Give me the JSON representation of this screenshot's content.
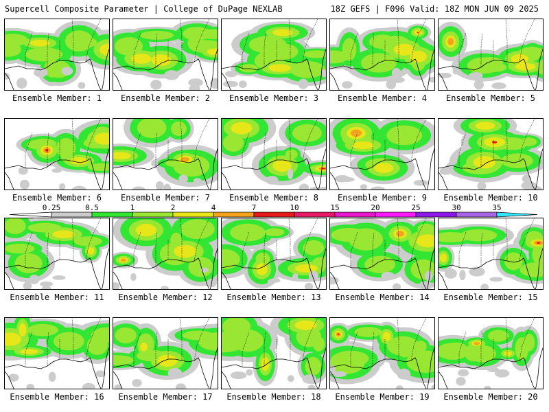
{
  "header": {
    "left_text": "Supercell Composite Parameter | College of DuPage NEXLAB",
    "right_text": "18Z GEFS | F096 Valid: 18Z MON JUN 09 2025"
  },
  "colorbar": {
    "levels": [
      {
        "label": "0.25",
        "color": "#cccccc"
      },
      {
        "label": "0.5",
        "color": "#33e633"
      },
      {
        "label": "1",
        "color": "#99e633"
      },
      {
        "label": "2",
        "color": "#e6e619"
      },
      {
        "label": "4",
        "color": "#f4a31e"
      },
      {
        "label": "7",
        "color": "#e61a1a"
      },
      {
        "label": "10",
        "color": "#e61a66"
      },
      {
        "label": "15",
        "color": "#e619cc"
      },
      {
        "label": "20",
        "color": "#ff19ff"
      },
      {
        "label": "25",
        "color": "#8c19e6"
      },
      {
        "label": "30",
        "color": "#a866e6"
      },
      {
        "label": "35",
        "color": "#33e6ff"
      }
    ],
    "end_color_low": "#ffffff"
  },
  "members": [
    {
      "label": "Ensemble Member: 1"
    },
    {
      "label": "Ensemble Member: 2"
    },
    {
      "label": "Ensemble Member: 3"
    },
    {
      "label": "Ensemble Member: 4"
    },
    {
      "label": "Ensemble Member: 5"
    },
    {
      "label": "Ensemble Member: 6"
    },
    {
      "label": "Ensemble Member: 7"
    },
    {
      "label": "Ensemble Member: 8"
    },
    {
      "label": "Ensemble Member: 9"
    },
    {
      "label": "Ensemble Member: 10"
    },
    {
      "label": "Ensemble Member: 11"
    },
    {
      "label": "Ensemble Member: 12"
    },
    {
      "label": "Ensemble Member: 13"
    },
    {
      "label": "Ensemble Member: 14"
    },
    {
      "label": "Ensemble Member: 15"
    },
    {
      "label": "Ensemble Member: 16"
    },
    {
      "label": "Ensemble Member: 17"
    },
    {
      "label": "Ensemble Member: 18"
    },
    {
      "label": "Ensemble Member: 19"
    },
    {
      "label": "Ensemble Member: 20"
    }
  ]
}
